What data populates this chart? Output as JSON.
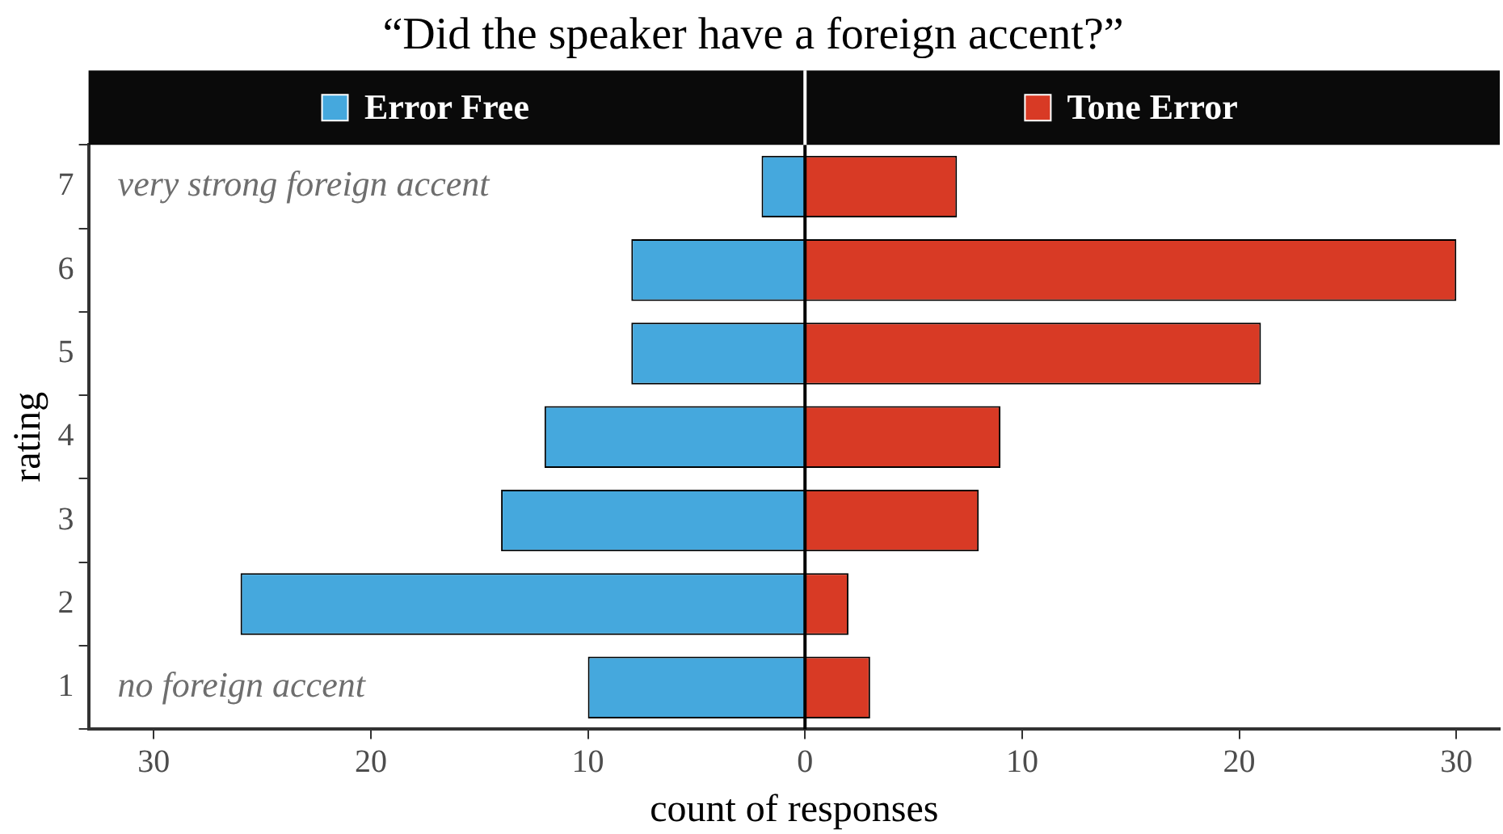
{
  "chart_data": {
    "type": "bar",
    "orientation": "horizontal",
    "title": "“Did the speaker have a foreign accent?”",
    "xlabel": "count of responses",
    "ylabel": "rating",
    "categories": [
      "7",
      "6",
      "5",
      "4",
      "3",
      "2",
      "1"
    ],
    "series": [
      {
        "name": "Error Free",
        "color": "#45a8dd",
        "values": [
          -2,
          -8,
          -8,
          -12,
          -14,
          -26,
          -10
        ]
      },
      {
        "name": "Tone Error",
        "color": "#d83a25",
        "values": [
          7,
          30,
          21,
          9,
          8,
          2,
          3
        ]
      }
    ],
    "xlim": [
      -33,
      32
    ],
    "xticks": [
      {
        "value": -30,
        "label": "30"
      },
      {
        "value": -20,
        "label": "20"
      },
      {
        "value": -10,
        "label": "10"
      },
      0,
      10,
      20,
      30
    ],
    "ref_lines": [
      {
        "axis": "x",
        "value": 0,
        "color": "#000000"
      }
    ],
    "annotations": [
      "very strong foreign accent",
      "no foreign accent"
    ],
    "stacked": true,
    "grid": false,
    "legend": "top"
  }
}
